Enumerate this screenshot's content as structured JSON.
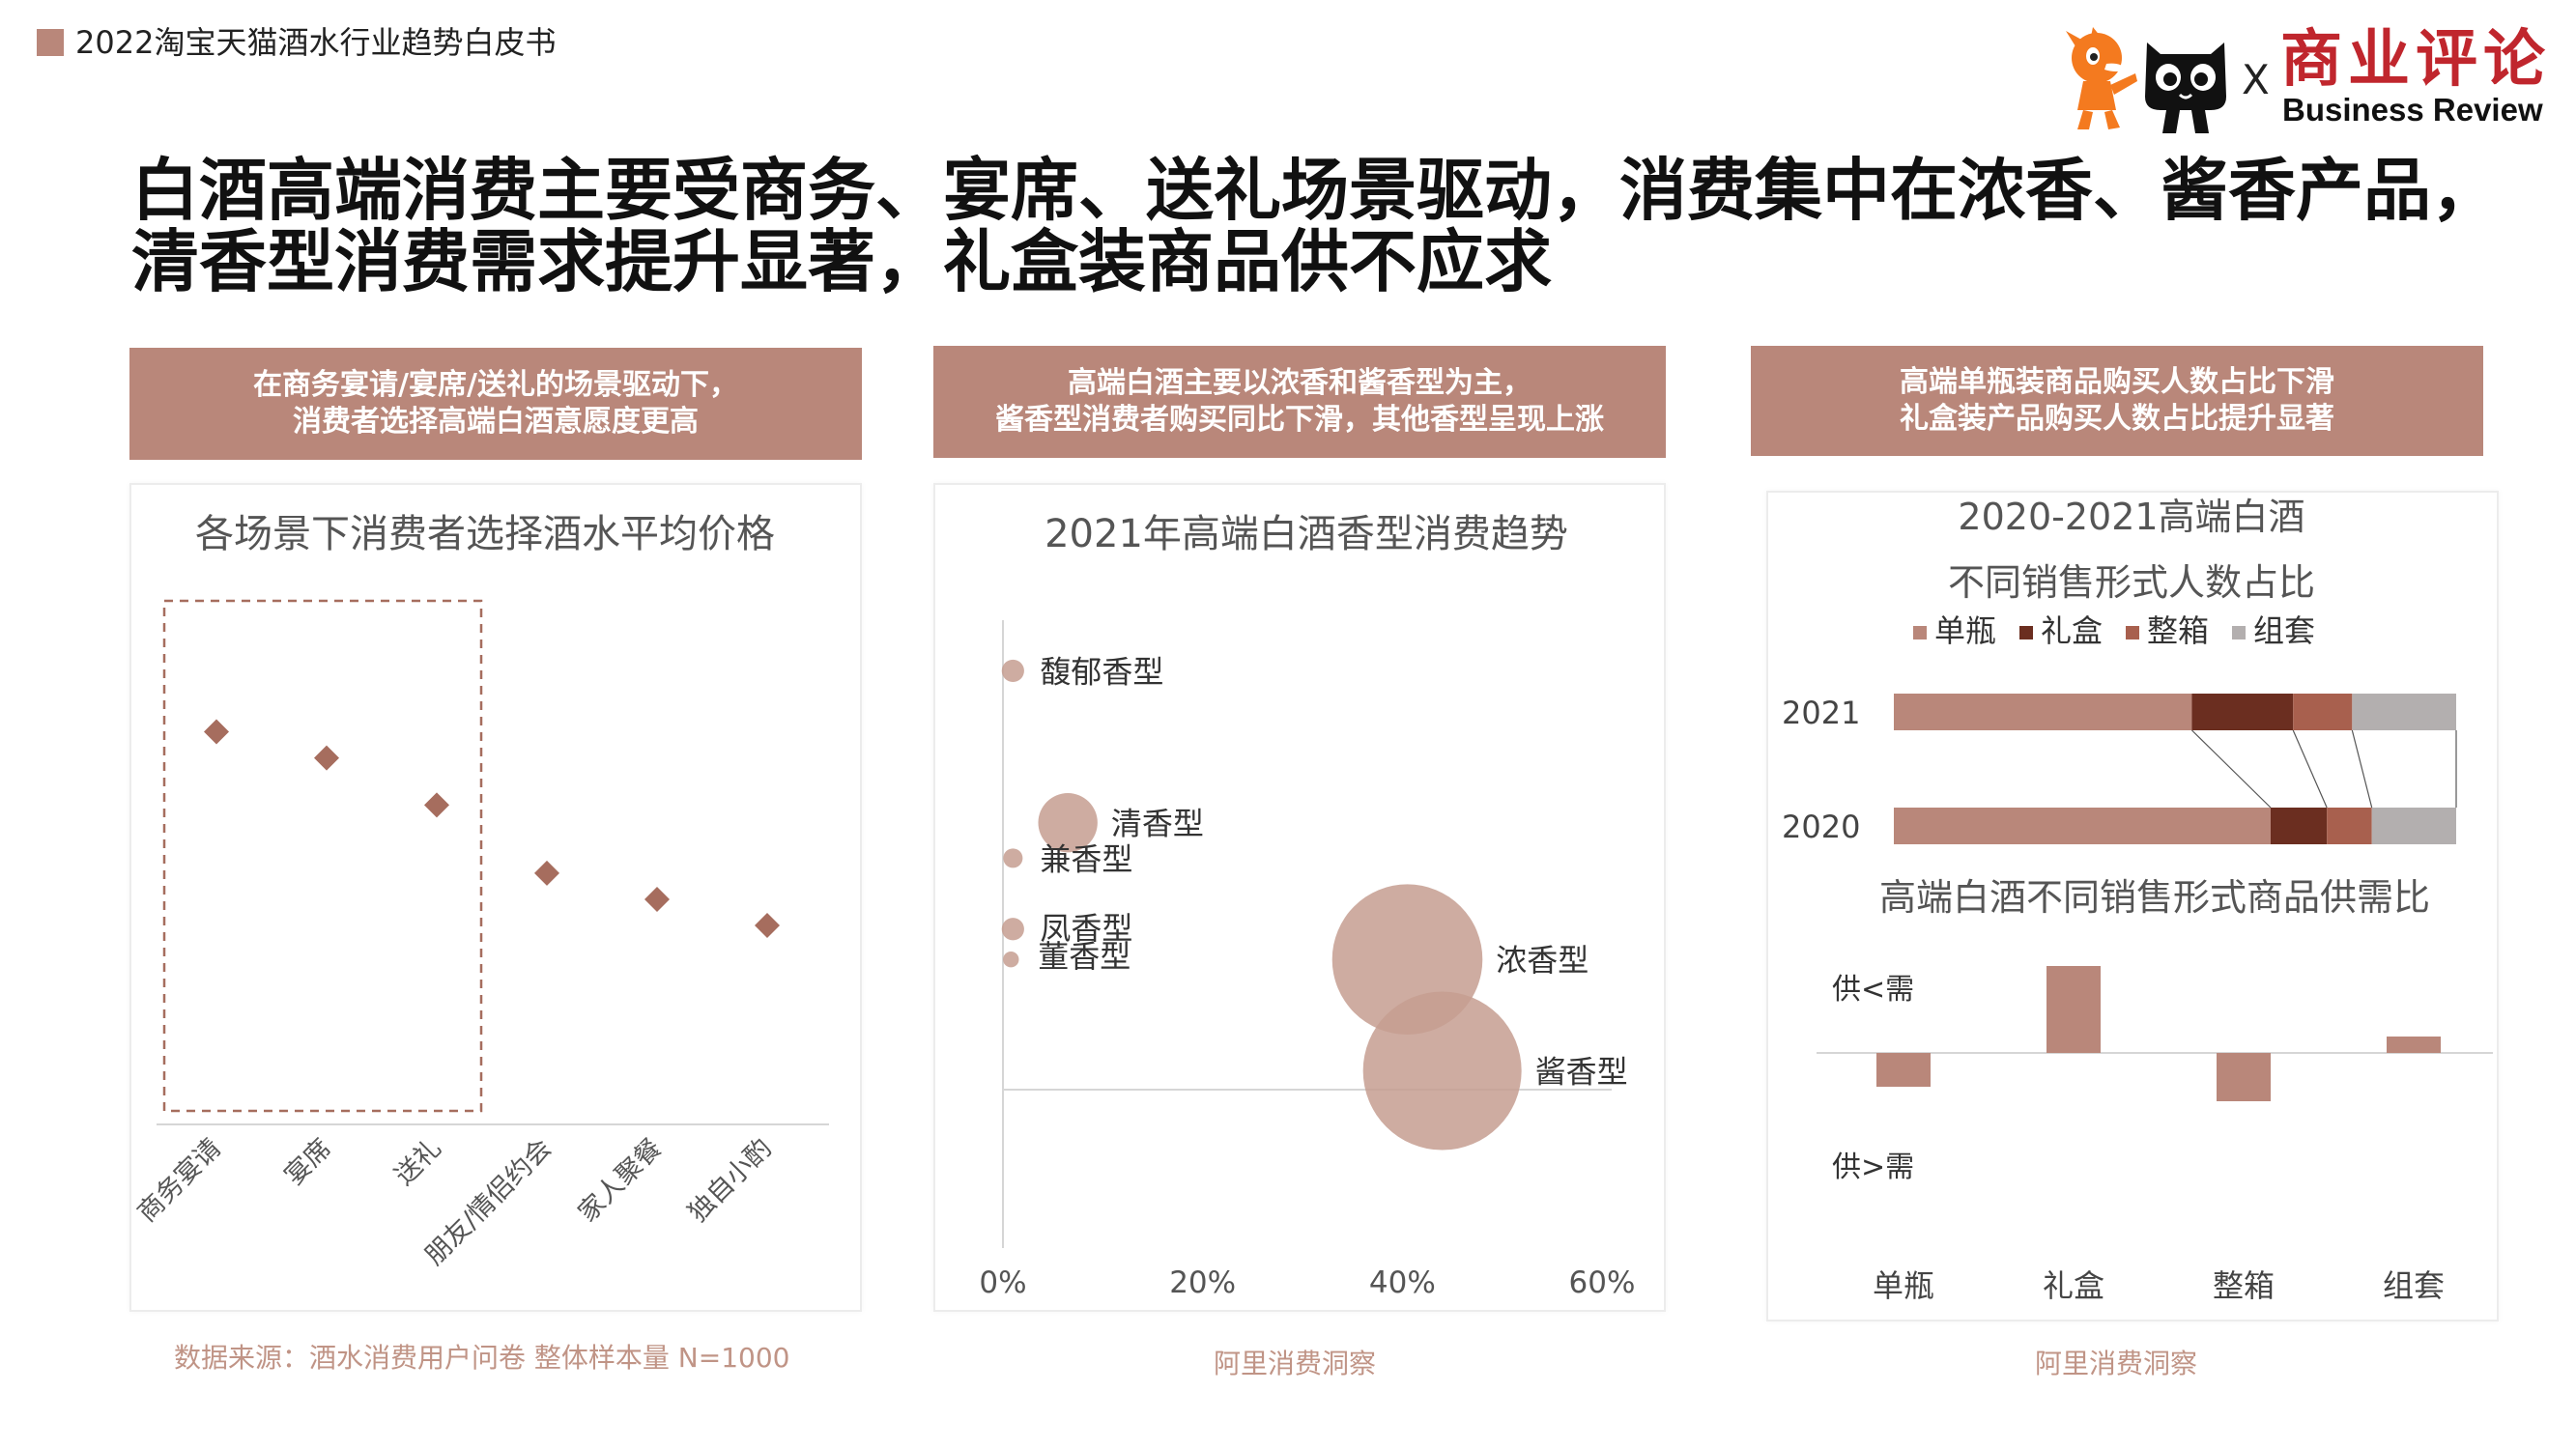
{
  "header": {
    "doc_title": "2022淘宝天猫酒水行业趋势白皮书"
  },
  "logo": {
    "separator": "X",
    "brand_cn": "商业评论",
    "brand_en": "Business Review"
  },
  "title": {
    "line1": "白酒高端消费主要受商务、宴席、送礼场景驱动，消费集中在浓香、酱香产品，",
    "line2": "清香型消费需求提升显著，礼盒装商品供不应求"
  },
  "banners": [
    {
      "line1": "在商务宴请/宴席/送礼的场景驱动下，",
      "line2": "消费者选择高端白酒意愿度更高"
    },
    {
      "line1": "高端白酒主要以浓香和酱香型为主，",
      "line2": "酱香型消费者购买同比下滑，其他香型呈现上涨"
    },
    {
      "line1": "高端单瓶装商品购买人数占比下滑",
      "line2": "礼盒装产品购买人数占比提升显著"
    }
  ],
  "sources": {
    "panel1": "数据来源：酒水消费用户问卷 整体样本量 N=1000",
    "panel2": "阿里消费洞察",
    "panel3": "阿里消费洞察"
  },
  "chart_data": [
    {
      "type": "scatter",
      "title": "各场景下消费者选择酒水平均价格",
      "categories": [
        "商务宴请",
        "宴席",
        "送礼",
        "朋友/情侣约会",
        "家人聚餐",
        "独自小酌"
      ],
      "values": [
        0.75,
        0.7,
        0.61,
        0.48,
        0.43,
        0.38
      ],
      "ylim": [
        0,
        1
      ],
      "marker": "diamond",
      "highlight_categories": [
        "商务宴请",
        "宴席",
        "送礼"
      ],
      "color": "#A66D5E",
      "grid": false
    },
    {
      "type": "scatter",
      "subtype": "bubble",
      "title": "2021年高端白酒香型消费趋势",
      "xlim": [
        0,
        60
      ],
      "x_ticks": [
        "0%",
        "20%",
        "40%",
        "60%"
      ],
      "ylim": [
        -22,
        40
      ],
      "color": "#C59E90",
      "points": [
        {
          "label": "馥郁香型",
          "x": 1,
          "y": 35,
          "size": 2
        },
        {
          "label": "清香型",
          "x": 6.5,
          "y": 20,
          "size": 14
        },
        {
          "label": "兼香型",
          "x": 1,
          "y": 16.5,
          "size": 1.5
        },
        {
          "label": "凤香型",
          "x": 1,
          "y": 9.5,
          "size": 2
        },
        {
          "label": "董香型",
          "x": 0.8,
          "y": 6.5,
          "size": 1
        },
        {
          "label": "浓香型",
          "x": 40.5,
          "y": 6.5,
          "size": 90
        },
        {
          "label": "酱香型",
          "x": 44,
          "y": -4.5,
          "size": 100
        }
      ]
    },
    {
      "type": "bar",
      "subtype": "stacked-100",
      "orientation": "horizontal",
      "title": "2020-2021高端白酒",
      "subtitle": "不同销售形式人数占比",
      "legend_position": "top",
      "categories": [
        "2021",
        "2020"
      ],
      "series": [
        {
          "name": "单瓶",
          "color": "#B9877A",
          "values": [
            53,
            67
          ]
        },
        {
          "name": "礼盒",
          "color": "#6B2E20",
          "values": [
            18,
            10
          ]
        },
        {
          "name": "整箱",
          "color": "#A8604E",
          "values": [
            10.5,
            8
          ]
        },
        {
          "name": "组套",
          "color": "#B3AFAF",
          "values": [
            18.5,
            15
          ]
        }
      ]
    },
    {
      "type": "bar",
      "title": "高端白酒不同销售形式商品供需比",
      "categories": [
        "单瓶",
        "礼盒",
        "整箱",
        "组套"
      ],
      "values": [
        -0.35,
        0.9,
        -0.5,
        0.17
      ],
      "ylim": [
        -1.3,
        1.2
      ],
      "y_labels": {
        "positive": "供<需",
        "negative": "供>需"
      },
      "color": "#B9877A"
    }
  ]
}
